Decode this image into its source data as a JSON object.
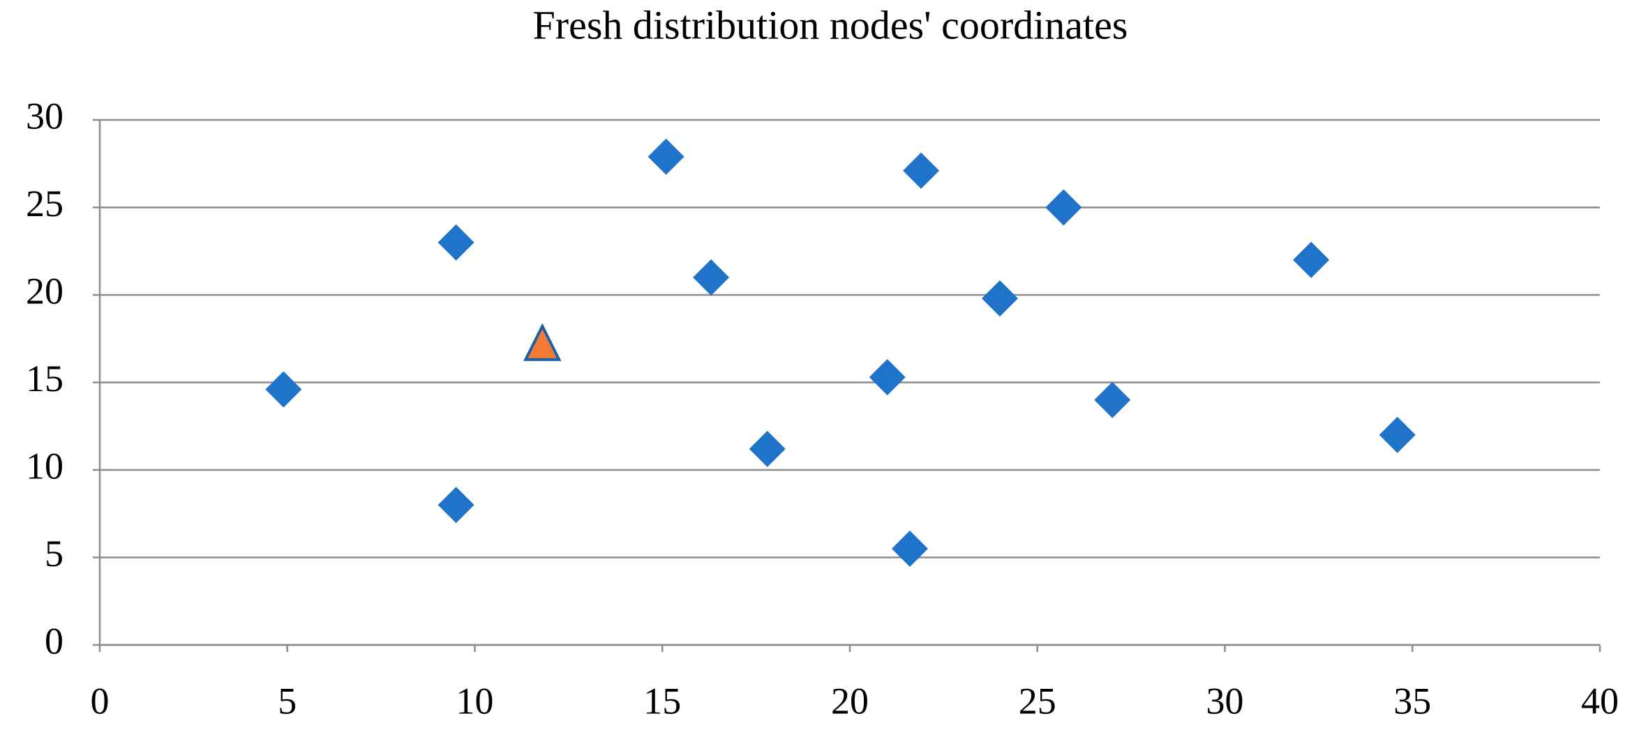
{
  "chart_data": {
    "type": "scatter",
    "title": "Fresh distribution nodes' coordinates",
    "xlim": [
      0,
      40
    ],
    "xticks": [
      0,
      5,
      10,
      15,
      20,
      25,
      30,
      35,
      40
    ],
    "ylim": [
      0,
      30
    ],
    "yticks": [
      0,
      5,
      10,
      15,
      20,
      25,
      30
    ],
    "grid": true,
    "series": [
      {
        "color": "#1f73c9",
        "marker": "diamond",
        "x": [
          4.9,
          9.5,
          9.5,
          15.1,
          16.3,
          17.8,
          21,
          21.6,
          21.9,
          24,
          25.7,
          27,
          32.3,
          34.6
        ],
        "values": [
          14.6,
          23,
          8,
          27.9,
          21,
          11.2,
          15.3,
          5.5,
          27.1,
          19.8,
          25,
          14,
          22,
          12
        ]
      },
      {
        "color": "#f47b35",
        "marker": "triangle",
        "x": [
          11.8
        ],
        "values": [
          17.1
        ]
      }
    ]
  }
}
